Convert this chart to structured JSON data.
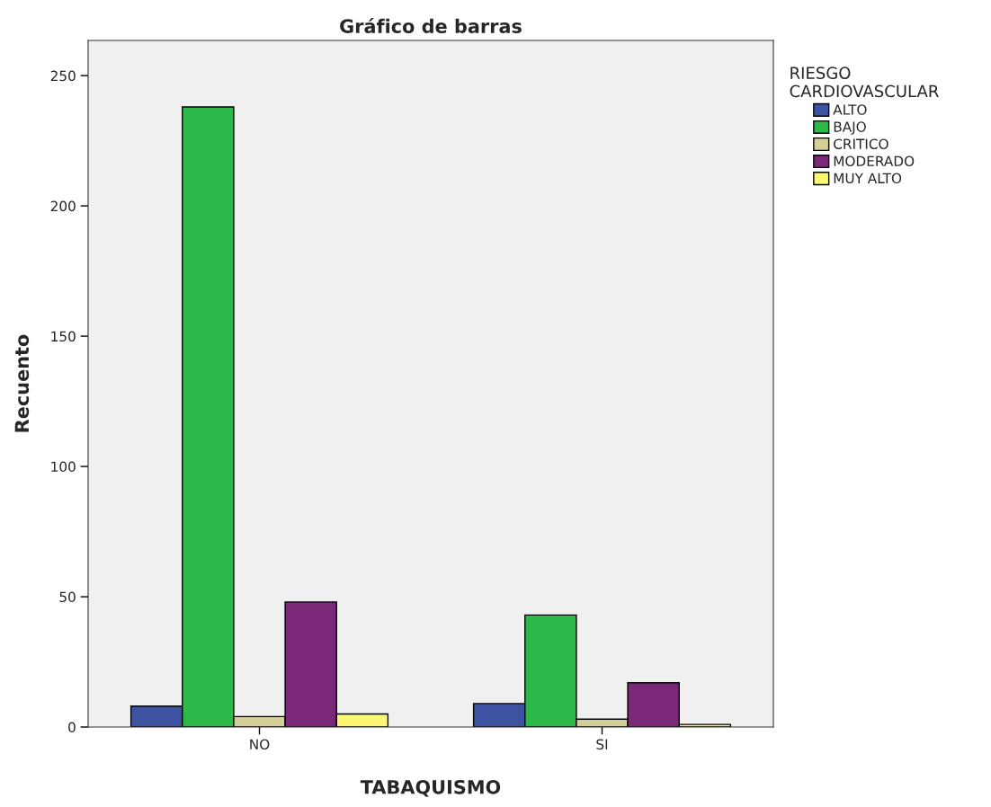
{
  "chart_data": {
    "type": "bar",
    "title": "Gráfico de barras",
    "xlabel": "TABAQUISMO",
    "ylabel": "Recuento",
    "legend_title": "RIESGO\nCARDIOVASCULAR",
    "categories": [
      "NO",
      "SI"
    ],
    "series": [
      {
        "name": "ALTO",
        "color": "#3d52a1",
        "values": [
          8,
          9
        ]
      },
      {
        "name": "BAJO",
        "color": "#2eb84a",
        "values": [
          238,
          43
        ]
      },
      {
        "name": "CRITICO",
        "color": "#d4cf98",
        "values": [
          4,
          3
        ]
      },
      {
        "name": "MODERADO",
        "color": "#7b2878",
        "values": [
          48,
          17
        ]
      },
      {
        "name": "MUY ALTO",
        "color": "#fbf774",
        "values": [
          5,
          1
        ]
      }
    ],
    "ylim": [
      0,
      263.5
    ],
    "yticks": [
      0,
      50,
      100,
      150,
      200,
      250
    ],
    "grid": false,
    "legend": "right"
  }
}
